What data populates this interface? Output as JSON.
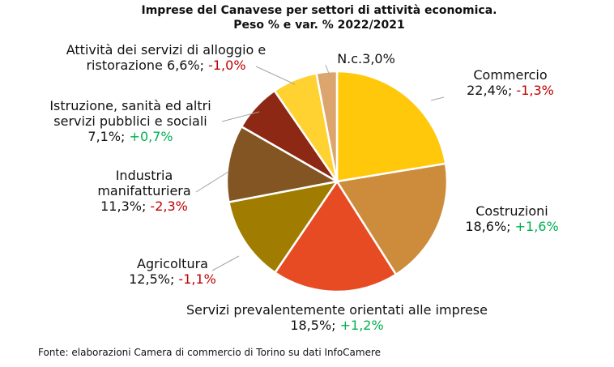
{
  "chart_data": {
    "type": "pie",
    "title_line1": "Imprese del Canavese per settori di attività economica.",
    "title_line2": "Peso % e var. % 2022/2021",
    "start_sector": "Commercio",
    "direction": "clockwise",
    "slices": [
      {
        "name": "Commercio",
        "label_lines": [
          "Commercio"
        ],
        "share": 22.4,
        "share_text": "22,4%;",
        "var": -1.3,
        "var_text": "-1,3%",
        "color": "#ffc80a"
      },
      {
        "name": "Costruzioni",
        "label_lines": [
          "Costruzioni"
        ],
        "share": 18.6,
        "share_text": "18,6%;",
        "var": 1.6,
        "var_text": "+1,6%",
        "color": "#cd8c3c"
      },
      {
        "name": "Servizi prevalentemente orientati alle imprese",
        "label_lines": [
          "Servizi prevalentemente orientati alle imprese"
        ],
        "share": 18.5,
        "share_text": "18,5%;",
        "var": 1.2,
        "var_text": "+1,2%",
        "color": "#e64b23"
      },
      {
        "name": "Agricoltura",
        "label_lines": [
          "Agricoltura"
        ],
        "share": 12.5,
        "share_text": "12,5%;",
        "var": -1.1,
        "var_text": "-1,1%",
        "color": "#a07d00"
      },
      {
        "name": "Industria manifatturiera",
        "label_lines": [
          "Industria",
          "manifatturiera"
        ],
        "share": 11.3,
        "share_text": "11,3%;",
        "var": -2.3,
        "var_text": "-2,3%",
        "color": "#825523"
      },
      {
        "name": "Istruzione, sanità ed altri servizi pubblici e sociali",
        "label_lines": [
          "Istruzione, sanità ed altri",
          "servizi pubblici e sociali"
        ],
        "share": 7.1,
        "share_text": "7,1%;",
        "var": 0.7,
        "var_text": "+0,7%",
        "color": "#8c2814"
      },
      {
        "name": "Attività dei servizi di alloggio e ristorazione",
        "label_lines": [
          "Attività dei servizi di alloggio e",
          "ristorazione 6,6%;"
        ],
        "share": 6.6,
        "share_text": "",
        "var": -1.0,
        "var_text": "-1,0%",
        "color": "#ffd232"
      },
      {
        "name": "N.c.",
        "label_lines": [
          "N.c.3,0%"
        ],
        "share": 3.0,
        "share_text": "",
        "var": null,
        "var_text": "",
        "color": "#dca56e"
      }
    ]
  },
  "source": "Fonte: elaborazioni Camera di commercio di Torino su dati InfoCamere"
}
